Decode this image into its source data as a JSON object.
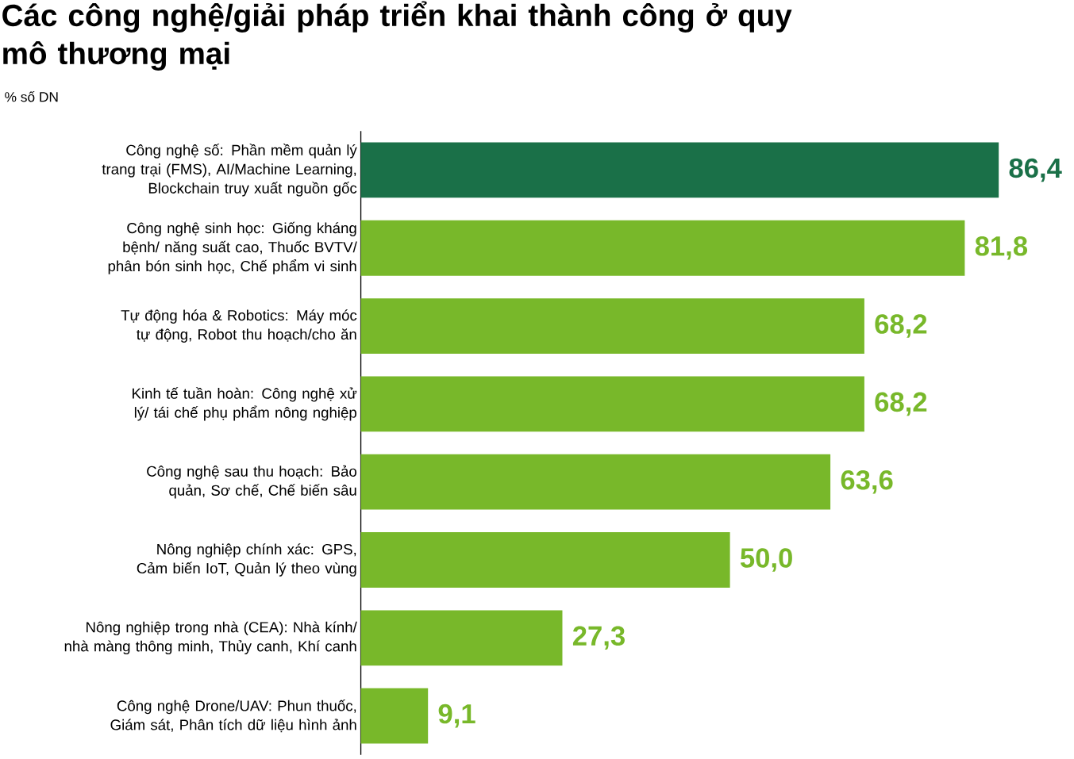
{
  "chart_data": {
    "type": "bar",
    "orientation": "horizontal",
    "title": "Các công nghệ/giải pháp triển khai thành công ở quy mô thương mại",
    "subtitle": "% số DN",
    "categories": [
      "Công nghệ số: Phần mềm quản lý trang trại (FMS), AI/Machine Learning, Blockchain truy xuất nguồn gốc",
      "Công nghệ sinh học: Giống kháng bệnh/ năng suất cao, Thuốc BVTV/ phân bón sinh học, Chế phẩm vi sinh",
      "Tự động hóa & Robotics: Máy móc tự động, Robot thu hoạch/cho ăn",
      "Kinh tế tuần hoàn: Công nghệ xử lý/ tái chế phụ phẩm nông nghiệp",
      "Công nghệ sau thu hoạch: Bảo quản, Sơ chế, Chế biến sâu",
      "Nông nghiệp chính xác: GPS, Cảm biến IoT, Quản lý theo vùng",
      "Nông nghiệp trong nhà (CEA): Nhà kính/ nhà màng thông minh, Thủy canh, Khí canh",
      "Công nghệ Drone/UAV: Phun thuốc, Giám sát, Phân tích dữ liệu hình ảnh"
    ],
    "values": [
      86.4,
      81.8,
      68.2,
      68.2,
      63.6,
      50.0,
      27.3,
      9.1
    ],
    "value_labels": [
      "86,4",
      "81,8",
      "68,2",
      "68,2",
      "63,6",
      "50,0",
      "27,3",
      "9,1"
    ],
    "colors": [
      "#1a7048",
      "#78b82a",
      "#78b82a",
      "#78b82a",
      "#78b82a",
      "#78b82a",
      "#78b82a",
      "#78b82a"
    ]
  }
}
